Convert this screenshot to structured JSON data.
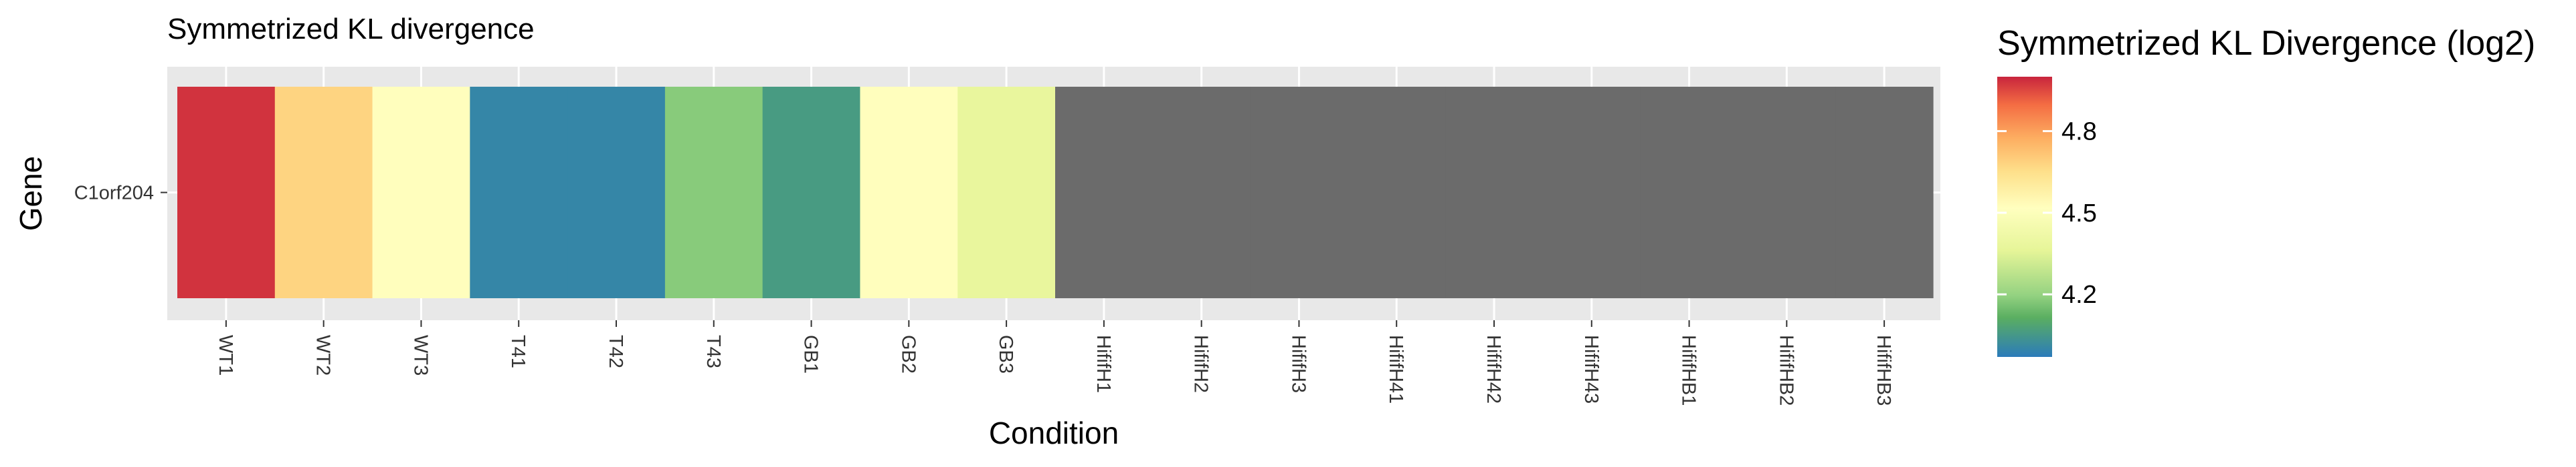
{
  "chart_data": {
    "type": "heatmap",
    "title": "Symmetrized KL divergence",
    "xlabel": "Condition",
    "ylabel": "Gene",
    "x_categories": [
      "WT1",
      "WT2",
      "WT3",
      "T41",
      "T42",
      "T43",
      "GB1",
      "GB2",
      "GB3",
      "HififH1",
      "HififH2",
      "HififH3",
      "HififH41",
      "HififH42",
      "HififH43",
      "HififHB1",
      "HififHB2",
      "HififHB3"
    ],
    "y_categories": [
      "C1orf204"
    ],
    "values": [
      [
        4.98,
        4.68,
        4.52,
        4.0,
        4.0,
        4.18,
        4.06,
        4.52,
        4.38,
        null,
        null,
        null,
        null,
        null,
        null,
        null,
        null,
        null
      ]
    ],
    "na_color": "#6b6b6b",
    "panel_background": "#e8e8e8",
    "colormap": "Spectral (red high, blue low)",
    "value_range": [
      3.97,
      5.0
    ],
    "legend": {
      "title": "Symmetrized KL Divergence (log2)",
      "ticks": [
        4.2,
        4.5,
        4.8
      ],
      "tick_labels": [
        "4.2",
        "4.5",
        "4.8"
      ],
      "position": "right"
    },
    "grid": true
  }
}
